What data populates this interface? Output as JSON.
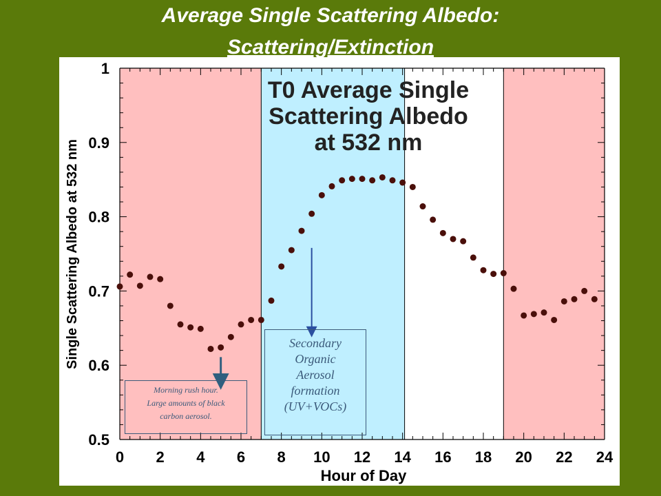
{
  "slide": {
    "title_line1": "Average Single Scattering Albedo:",
    "title_line2": "Scattering/Extinction"
  },
  "colors": {
    "background": "#5a7a0a",
    "night_band": "#ffbfbf",
    "day_band": "#bfefff",
    "points": "#4a0f0a",
    "arrow": "#2f5f7f",
    "arrow2": "#2b4fa0"
  },
  "annotations": {
    "morning_line1": "Morning rush hour.",
    "morning_line2": "Large amounts of black",
    "morning_line3": "carbon aerosol.",
    "soa_line1": "Secondary",
    "soa_line2": "Organic",
    "soa_line3": "Aerosol",
    "soa_line4": "formation",
    "soa_line5": "(UV+VOCs)"
  },
  "chart_data": {
    "type": "scatter",
    "title_lines": [
      "T0 Average Single",
      "Scattering Albedo",
      "at 532 nm"
    ],
    "xlabel": "Hour of Day",
    "ylabel": "Single Scattering Albedo at 532 nm",
    "xlim": [
      0,
      24
    ],
    "ylim": [
      0.5,
      1
    ],
    "xticks": [
      0,
      2,
      4,
      6,
      8,
      10,
      12,
      14,
      16,
      18,
      20,
      22,
      24
    ],
    "yticks": [
      0.5,
      0.6,
      0.7,
      0.8,
      0.9,
      1
    ],
    "ytick_labels": [
      "0.5",
      "0.6",
      "0.7",
      "0.8",
      "0.9",
      "1"
    ],
    "bands": [
      {
        "from": 0,
        "to": 7,
        "color": "#ffbfbf"
      },
      {
        "from": 7,
        "to": 14.1,
        "color": "#bfefff"
      },
      {
        "from": 19,
        "to": 24,
        "color": "#ffbfbf"
      }
    ],
    "series": [
      {
        "x": [
          0,
          0.5,
          1,
          1.5,
          2,
          2.5,
          3,
          3.5,
          4,
          4.5,
          5,
          5.5,
          6,
          6.5,
          7,
          7.5,
          8,
          8.5,
          9,
          9.5,
          10,
          10.5,
          11,
          11.5,
          12,
          12.5,
          13,
          13.5,
          14,
          14.5,
          15,
          15.5,
          16,
          16.5,
          17,
          17.5,
          18,
          18.5,
          19,
          19.5,
          20,
          20.5,
          21,
          21.5,
          22,
          22.5,
          23,
          23.5
        ],
        "y": [
          0.706,
          0.722,
          0.707,
          0.719,
          0.716,
          0.68,
          0.655,
          0.651,
          0.649,
          0.622,
          0.624,
          0.638,
          0.655,
          0.661,
          0.661,
          0.687,
          0.733,
          0.755,
          0.781,
          0.804,
          0.829,
          0.841,
          0.849,
          0.851,
          0.851,
          0.849,
          0.853,
          0.849,
          0.846,
          0.84,
          0.814,
          0.796,
          0.778,
          0.77,
          0.767,
          0.745,
          0.728,
          0.723,
          0.724,
          0.703,
          0.667,
          0.669,
          0.671,
          0.661,
          0.686,
          0.689,
          0.7,
          0.689
        ]
      }
    ],
    "annotation_arrows": [
      {
        "x": 5,
        "y_from": 0.611,
        "y_to": 0.578
      },
      {
        "x": 9.5,
        "y_from": 0.758,
        "y_to": 0.645
      }
    ]
  }
}
